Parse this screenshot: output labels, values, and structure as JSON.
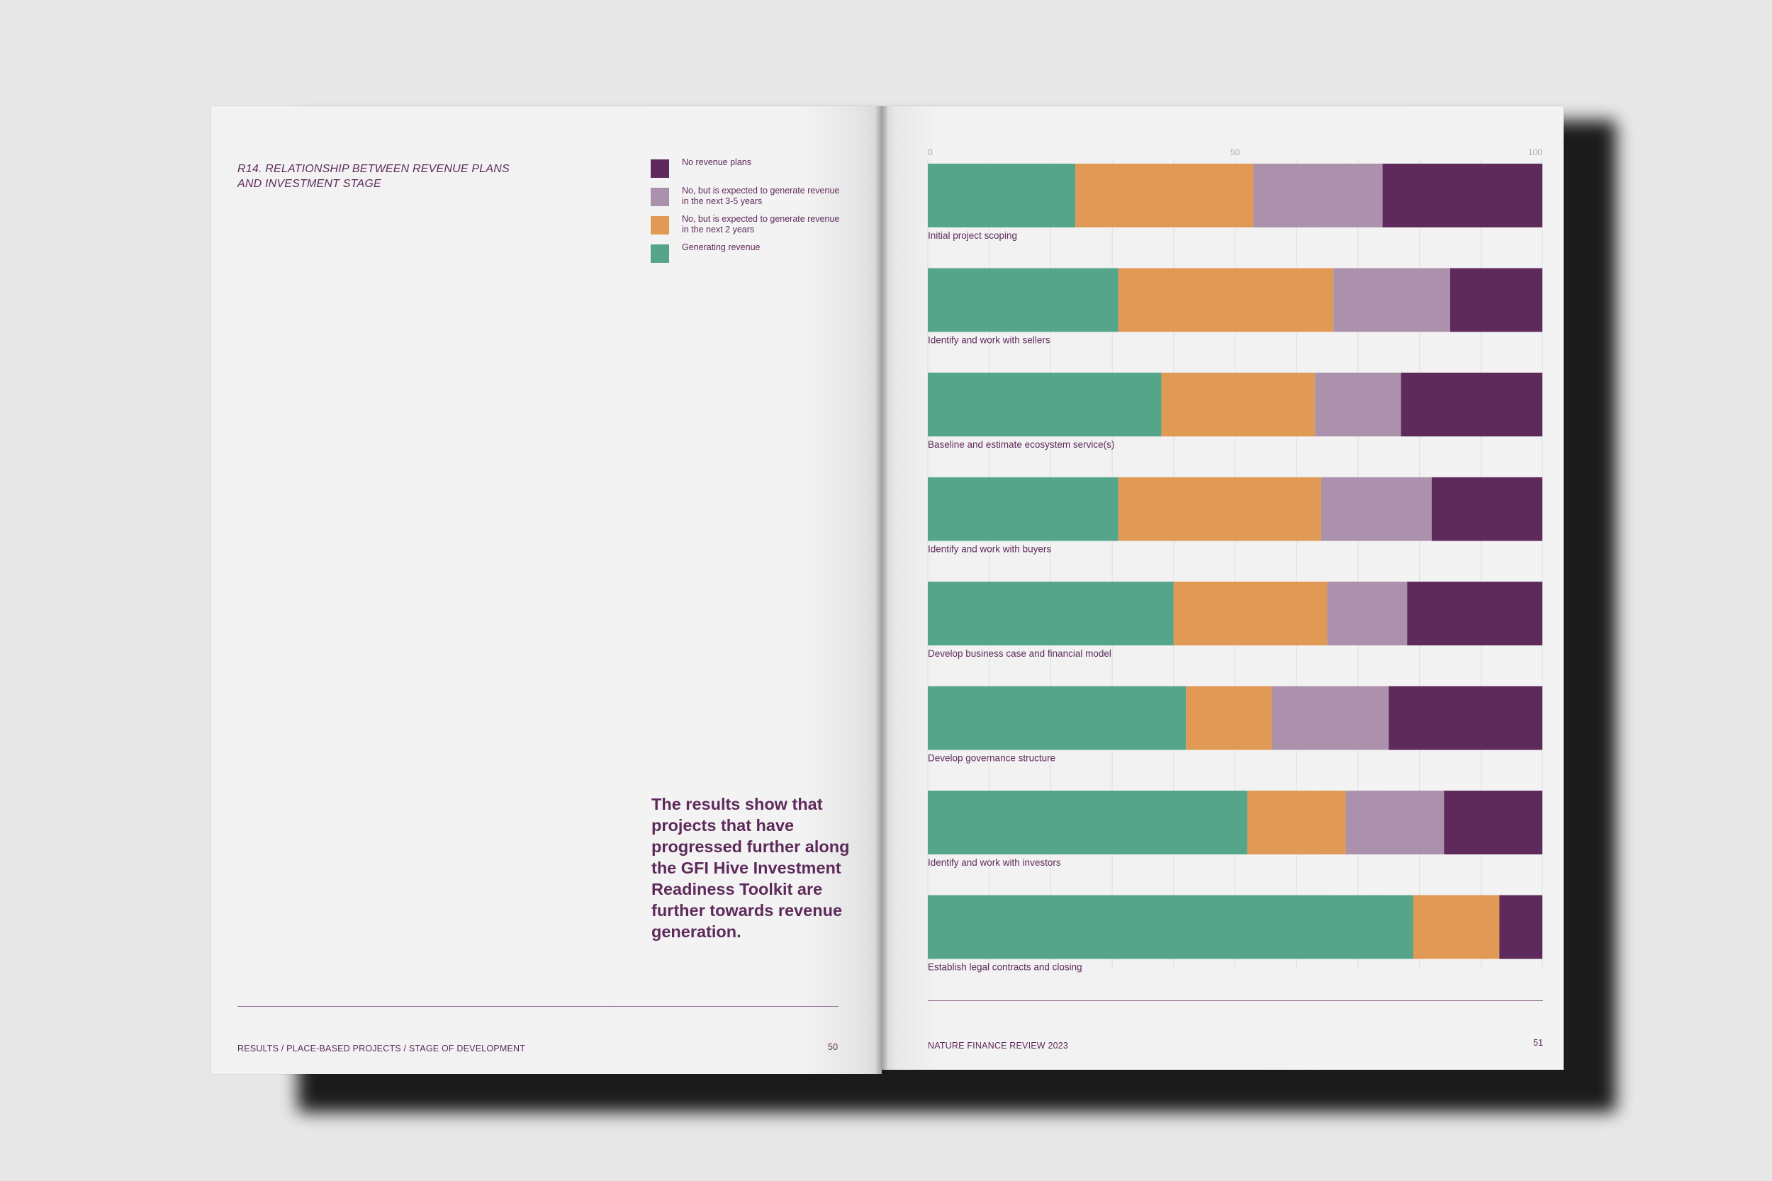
{
  "left_page": {
    "title": "R14. RELATIONSHIP BETWEEN REVENUE PLANS AND INVESTMENT STAGE",
    "quote": "The results show that projects that have progressed further along the GFI Hive Investment Readiness Toolkit are further towards revenue generation.",
    "footer_section": "RESULTS / PLACE-BASED PROJECTS / STAGE OF DEVELOPMENT",
    "page_number": "50"
  },
  "right_page": {
    "footer_title": "NATURE FINANCE REVIEW 2023",
    "page_number": "51"
  },
  "legend": [
    {
      "label": "No revenue plans",
      "color": "#5e2a5b"
    },
    {
      "label": "No, but is expected to generate revenue in the next 3-5 years",
      "color": "#ab91ab"
    },
    {
      "label": "No, but is expected to generate revenue in the next 2 years",
      "color": "#e19a56"
    },
    {
      "label": "Generating revenue",
      "color": "#55a58a"
    }
  ],
  "chart_data": {
    "type": "bar",
    "orientation": "horizontal",
    "stacked": true,
    "title": "R14. RELATIONSHIP BETWEEN REVENUE PLANS AND INVESTMENT STAGE",
    "xlim": [
      0,
      100
    ],
    "xticks": [
      0,
      50,
      100
    ],
    "grid": true,
    "categories": [
      "Initial project scoping",
      "Identify and work with sellers",
      "Baseline and estimate ecosystem service(s)",
      "Identify and work with buyers",
      "Develop business case and financial model",
      "Develop governance structure",
      "Identify and work with investors",
      "Establish legal contracts and closing"
    ],
    "series": [
      {
        "name": "Generating revenue",
        "color": "#55a58a",
        "values": [
          24,
          31,
          38,
          31,
          40,
          42,
          52,
          79
        ]
      },
      {
        "name": "No, but is expected to generate revenue in the next 2 years",
        "color": "#e19a56",
        "values": [
          29,
          35,
          25,
          33,
          25,
          14,
          16,
          14
        ]
      },
      {
        "name": "No, but is expected to generate revenue in the next 3-5 years",
        "color": "#ab91ab",
        "values": [
          21,
          19,
          14,
          18,
          13,
          19,
          16,
          0
        ]
      },
      {
        "name": "No revenue plans",
        "color": "#5e2a5b",
        "values": [
          26,
          15,
          23,
          18,
          22,
          25,
          16,
          7
        ]
      }
    ]
  }
}
